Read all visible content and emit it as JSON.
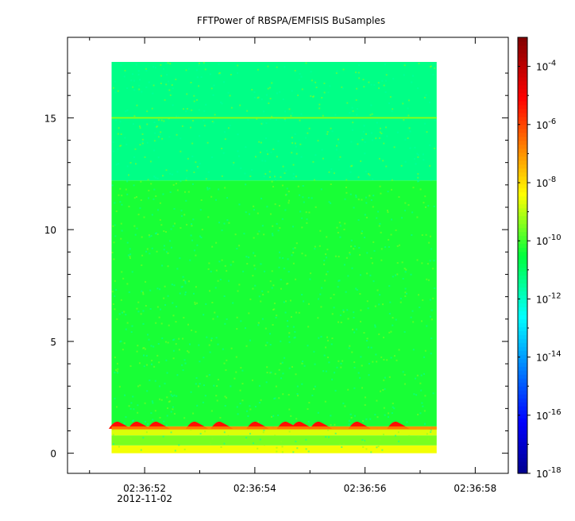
{
  "chart_data": {
    "type": "heatmap",
    "title": "FFTPower of RBSPA/EMFISIS  BuSamples",
    "xlabel": "",
    "ylabel": "",
    "x_ticks": [
      "02:36:52",
      "02:36:54",
      "02:36:56",
      "02:36:58"
    ],
    "x_date_label": "2012-11-02",
    "x_range_seconds": [
      50.6,
      58.6
    ],
    "data_x_range_seconds": [
      51.4,
      57.3
    ],
    "y_ticks": [
      0,
      5,
      10,
      15
    ],
    "ylim": [
      -0.9,
      18.6
    ],
    "data_y_range": [
      0,
      17.5
    ],
    "colorbar": {
      "scale": "log",
      "range": [
        1e-18,
        0.001
      ],
      "ticks": [
        {
          "base": "10",
          "exp": "-18",
          "log": -18
        },
        {
          "base": "10",
          "exp": "-16",
          "log": -16
        },
        {
          "base": "10",
          "exp": "-14",
          "log": -14
        },
        {
          "base": "10",
          "exp": "-12",
          "log": -12
        },
        {
          "base": "10",
          "exp": "-10",
          "log": -10
        },
        {
          "base": "10",
          "exp": "-8",
          "log": -8
        },
        {
          "base": "10",
          "exp": "-6",
          "log": -6
        },
        {
          "base": "10",
          "exp": "-4",
          "log": -4
        }
      ]
    },
    "bands": [
      {
        "y": [
          0,
          0.35
        ],
        "log_power": -8.5
      },
      {
        "y": [
          0.35,
          0.8
        ],
        "log_power": -9.5
      },
      {
        "y": [
          0.8,
          1.2
        ],
        "log_power": -8.7
      },
      {
        "y": [
          1.2,
          12.2
        ],
        "log_power": -10.3
      },
      {
        "y": [
          12.2,
          17.5
        ],
        "log_power": -11.3
      }
    ],
    "line_feature": {
      "y": 15.0,
      "log_power": -9.4
    },
    "bursts_seconds": [
      51.55,
      51.9,
      52.25,
      52.95,
      53.4,
      54.05,
      54.6,
      54.85,
      55.2,
      55.9,
      56.6
    ]
  }
}
